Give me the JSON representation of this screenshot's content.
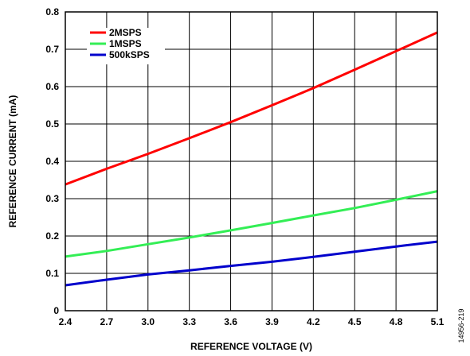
{
  "figure_id": "14956-219",
  "chart_data": {
    "type": "line",
    "xlabel": "REFERENCE VOLTAGE (V)",
    "ylabel": "REFERENCE CURRENT (mA)",
    "xlim": [
      2.4,
      5.1
    ],
    "ylim": [
      0,
      0.8
    ],
    "xticks": [
      "2.4",
      "2.7",
      "3.0",
      "3.3",
      "3.6",
      "3.9",
      "4.2",
      "4.5",
      "4.8",
      "5.1"
    ],
    "yticks": [
      "0",
      "0.1",
      "0.2",
      "0.3",
      "0.4",
      "0.5",
      "0.6",
      "0.7",
      "0.8"
    ],
    "grid": true,
    "legend_position": "top-left",
    "series": [
      {
        "name": "2MSPS",
        "color": "#ff0000",
        "x": [
          2.4,
          2.7,
          3.0,
          3.3,
          3.6,
          3.9,
          4.2,
          4.5,
          4.8,
          5.1
        ],
        "y": [
          0.338,
          0.38,
          0.42,
          0.462,
          0.505,
          0.55,
          0.596,
          0.645,
          0.695,
          0.745
        ]
      },
      {
        "name": "1MSPS",
        "color": "#33ee55",
        "x": [
          2.4,
          2.7,
          3.0,
          3.3,
          3.6,
          3.9,
          4.2,
          4.5,
          4.8,
          5.1
        ],
        "y": [
          0.145,
          0.16,
          0.178,
          0.196,
          0.215,
          0.235,
          0.255,
          0.275,
          0.297,
          0.32
        ]
      },
      {
        "name": "500kSPS",
        "color": "#0000cc",
        "x": [
          2.4,
          2.7,
          3.0,
          3.3,
          3.6,
          3.9,
          4.2,
          4.5,
          4.8,
          5.1
        ],
        "y": [
          0.068,
          0.083,
          0.097,
          0.108,
          0.12,
          0.131,
          0.144,
          0.158,
          0.172,
          0.185
        ]
      }
    ]
  }
}
